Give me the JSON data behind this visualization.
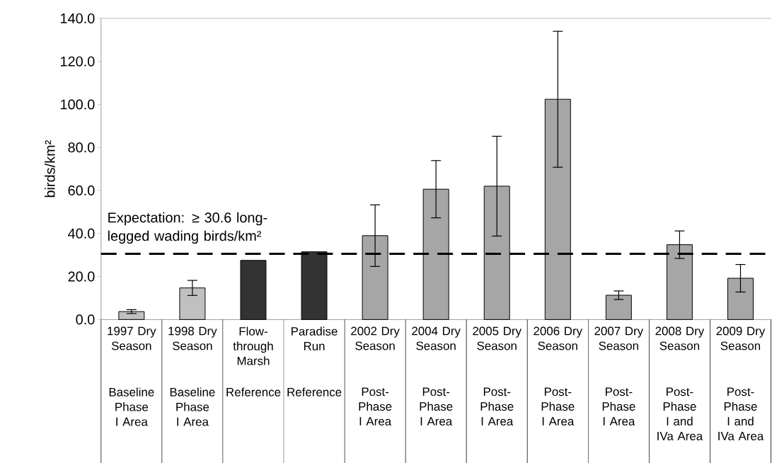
{
  "chart_data": {
    "type": "bar",
    "ylabel": "birds/km²",
    "categories": [
      "1997 Dry Season",
      "1998 Dry Season",
      "Flow-through Marsh",
      "Paradise Run",
      "2002 Dry Season",
      "2004 Dry Season",
      "2005 Dry Season",
      "2006 Dry Season",
      "2007 Dry Season",
      "2008 Dry Season",
      "2009 Dry Season"
    ],
    "values": [
      3.7,
      14.7,
      27.5,
      31.5,
      39.0,
      60.6,
      62.0,
      102.4,
      11.3,
      34.8,
      19.2
    ],
    "errors": [
      0.9,
      3.5,
      null,
      null,
      14.3,
      13.3,
      23.2,
      31.6,
      2.0,
      6.4,
      6.4
    ],
    "colors": [
      "#c0c0c0",
      "#c0c0c0",
      "#333333",
      "#333333",
      "#a6a6a6",
      "#a6a6a6",
      "#a6a6a6",
      "#a6a6a6",
      "#a6a6a6",
      "#a6a6a6",
      "#a6a6a6"
    ],
    "ylim": [
      0,
      140
    ],
    "yticks": [
      {
        "value": 0,
        "label": "0.0"
      },
      {
        "value": 20,
        "label": "20.0"
      },
      {
        "value": 40,
        "label": "40.0"
      },
      {
        "value": 60,
        "label": "60.0"
      },
      {
        "value": 80,
        "label": "80.0"
      },
      {
        "value": 100,
        "label": "100.0"
      },
      {
        "value": 120,
        "label": "120.0"
      },
      {
        "value": 140,
        "label": "140.0"
      }
    ],
    "ref_lines": [
      {
        "axis": "y",
        "value": 30.6,
        "label": "Expectation: ≥ 30.6 long-legged wading birds/km²",
        "color": "#000000",
        "line_style": "dashed"
      }
    ],
    "annotations": [
      "Baseline Phase I Area",
      "Baseline Phase I Area",
      "Reference",
      "Reference",
      "Post-Phase I Area",
      "Post-Phase I Area",
      "Post-Phase I Area",
      "Post-Phase I Area",
      "Post-Phase I Area",
      "Post-Phase I and IVa Area",
      "Post-Phase I and IVa Area"
    ]
  }
}
